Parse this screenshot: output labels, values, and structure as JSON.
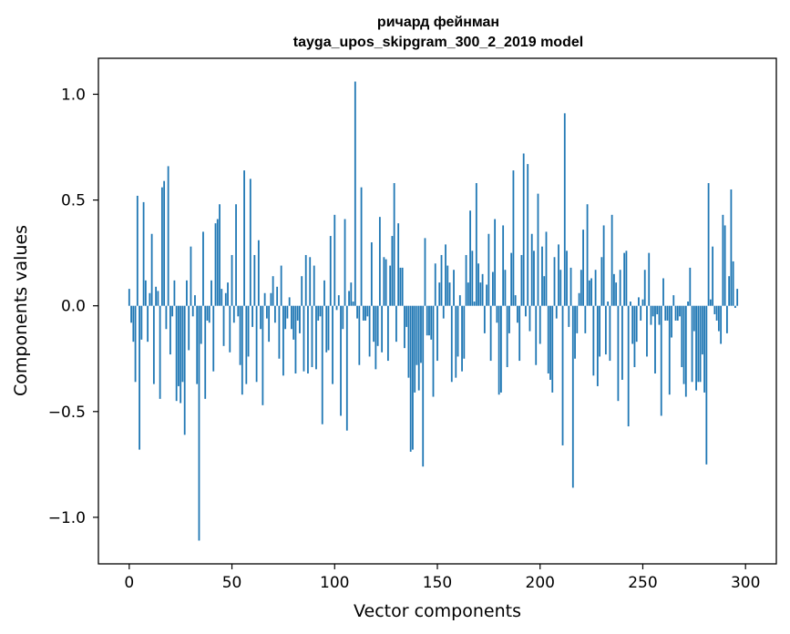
{
  "chart_data": {
    "type": "bar",
    "title": "ричард фейнман",
    "subtitle": "tayga_upos_skipgram_300_2_2019 model",
    "xlabel": "Vector components",
    "ylabel": "Components values",
    "xlim": [
      -15,
      315
    ],
    "ylim": [
      -1.22,
      1.17
    ],
    "xticks": [
      0,
      50,
      100,
      150,
      200,
      250,
      300
    ],
    "xtick_labels": [
      "0",
      "50",
      "100",
      "150",
      "200",
      "250",
      "300"
    ],
    "yticks": [
      -1.0,
      -0.5,
      0.0,
      0.5,
      1.0
    ],
    "ytick_labels": [
      "−1.0",
      "−0.5",
      "0.0",
      "0.5",
      "1.0"
    ],
    "grid": false,
    "bar_color": "#1f77b4",
    "values": [
      0.08,
      -0.08,
      -0.17,
      -0.36,
      0.52,
      -0.68,
      -0.16,
      0.49,
      0.12,
      -0.17,
      0.06,
      0.34,
      -0.37,
      0.09,
      0.07,
      -0.44,
      0.56,
      0.59,
      -0.11,
      0.66,
      -0.23,
      -0.05,
      0.12,
      -0.45,
      -0.38,
      -0.46,
      -0.36,
      -0.61,
      0.12,
      -0.21,
      0.28,
      -0.05,
      0.05,
      -0.37,
      -1.11,
      -0.18,
      0.35,
      -0.44,
      -0.07,
      -0.08,
      0.12,
      -0.31,
      0.39,
      0.41,
      0.48,
      0.08,
      -0.19,
      0.06,
      0.11,
      -0.22,
      0.24,
      -0.08,
      0.48,
      -0.05,
      -0.28,
      -0.42,
      0.64,
      -0.37,
      -0.24,
      0.6,
      -0.1,
      0.24,
      -0.36,
      0.31,
      -0.11,
      -0.47,
      0.06,
      -0.06,
      -0.17,
      0.06,
      0.14,
      -0.08,
      0.09,
      -0.25,
      0.19,
      -0.33,
      -0.11,
      -0.06,
      0.04,
      -0.11,
      -0.16,
      -0.32,
      -0.07,
      -0.13,
      0.14,
      -0.31,
      0.24,
      -0.32,
      0.23,
      -0.29,
      0.19,
      -0.3,
      -0.07,
      -0.05,
      -0.56,
      0.12,
      -0.22,
      -0.21,
      0.33,
      -0.37,
      0.43,
      -0.02,
      0.05,
      -0.52,
      -0.11,
      0.41,
      -0.59,
      0.07,
      0.11,
      0.02,
      1.06,
      -0.06,
      -0.28,
      0.56,
      -0.07,
      -0.07,
      -0.05,
      -0.24,
      0.3,
      -0.17,
      -0.3,
      -0.19,
      0.42,
      -0.22,
      0.23,
      0.22,
      -0.26,
      0.19,
      0.33,
      0.58,
      -0.17,
      0.39,
      0.18,
      0.18,
      -0.2,
      -0.1,
      -0.34,
      -0.69,
      -0.68,
      -0.41,
      -0.28,
      -0.4,
      -0.27,
      -0.76,
      0.32,
      -0.14,
      -0.14,
      -0.16,
      -0.43,
      0.2,
      -0.26,
      0.11,
      0.24,
      -0.06,
      0.29,
      0.19,
      0.11,
      -0.36,
      0.17,
      -0.34,
      -0.24,
      0.05,
      -0.31,
      -0.25,
      0.24,
      0.11,
      0.45,
      0.26,
      0.02,
      0.58,
      0.2,
      0.11,
      0.15,
      -0.13,
      0.1,
      0.34,
      -0.26,
      0.16,
      0.41,
      -0.08,
      -0.42,
      -0.41,
      0.38,
      0.17,
      -0.29,
      -0.13,
      0.25,
      0.64,
      0.05,
      -0.08,
      -0.26,
      0.24,
      0.72,
      -0.05,
      0.67,
      -0.12,
      0.34,
      0.26,
      -0.28,
      0.53,
      -0.18,
      0.28,
      0.14,
      0.35,
      -0.32,
      -0.35,
      -0.41,
      0.23,
      -0.06,
      0.29,
      0.17,
      -0.66,
      0.91,
      0.26,
      -0.1,
      0.18,
      -0.86,
      -0.25,
      -0.13,
      0.06,
      0.17,
      0.36,
      -0.13,
      0.48,
      0.12,
      0.13,
      -0.33,
      0.17,
      -0.38,
      -0.24,
      0.23,
      0.38,
      -0.23,
      0.02,
      -0.26,
      0.43,
      0.15,
      0.11,
      -0.45,
      0.17,
      -0.35,
      0.25,
      0.26,
      -0.57,
      0.02,
      -0.18,
      -0.29,
      -0.17,
      0.04,
      -0.07,
      0.03,
      0.17,
      -0.24,
      0.25,
      -0.09,
      -0.05,
      -0.32,
      -0.04,
      -0.09,
      -0.52,
      0.13,
      -0.07,
      -0.07,
      -0.42,
      -0.15,
      0.05,
      -0.07,
      -0.07,
      -0.05,
      -0.29,
      -0.37,
      -0.43,
      0.02,
      0.18,
      -0.36,
      -0.12,
      -0.4,
      -0.36,
      -0.36,
      -0.23,
      -0.41,
      -0.75,
      0.58,
      0.03,
      0.28,
      -0.04,
      -0.07,
      -0.12,
      -0.18,
      0.43,
      0.38,
      -0.13,
      0.14,
      0.55,
      0.21,
      -0.01,
      0.08
    ]
  }
}
